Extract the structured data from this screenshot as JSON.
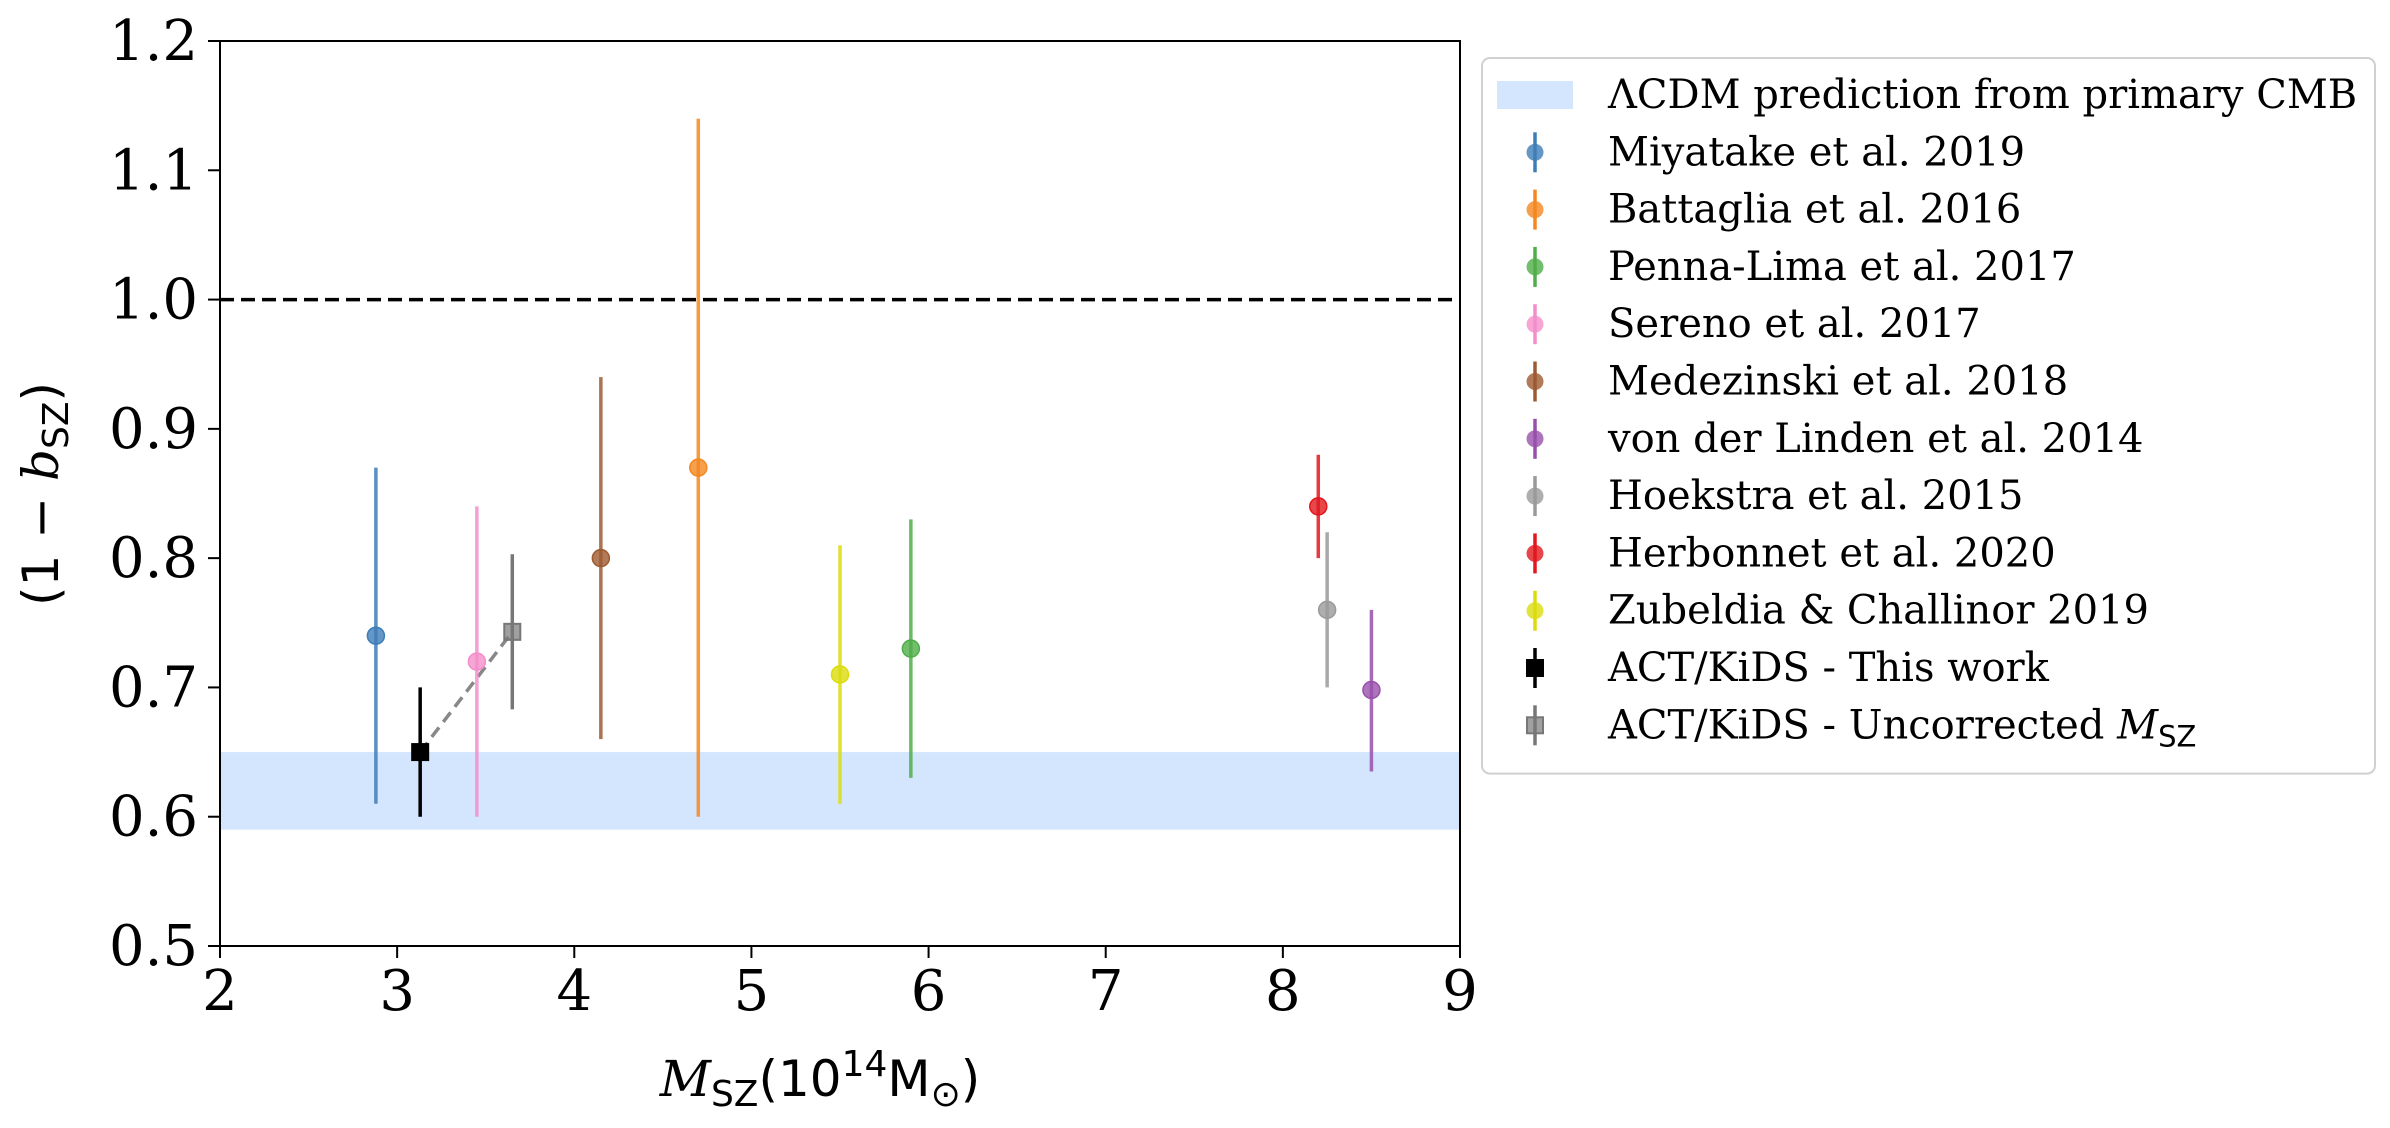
{
  "chart_data": {
    "type": "scatter",
    "xlabel": "M_SZ(10^14 M_sun)",
    "xlabel_parts": {
      "m": "M",
      "sub": "SZ",
      "open": "(10",
      "exp": "14",
      "msun": "M",
      "sun": "⊙",
      "close": ")"
    },
    "ylabel_parts": {
      "open": "(1 − ",
      "b": "b",
      "sub": "SZ",
      "close": ")"
    },
    "xlim": [
      2,
      9
    ],
    "ylim": [
      0.5,
      1.2
    ],
    "xticks": [
      "2",
      "3",
      "4",
      "5",
      "6",
      "7",
      "8",
      "9"
    ],
    "yticks": [
      "0.5",
      "0.6",
      "0.7",
      "0.8",
      "0.9",
      "1.0",
      "1.1",
      "1.2"
    ],
    "reference_line": {
      "y": 1.0,
      "style": "dashed",
      "color": "#000000"
    },
    "band": {
      "label": "ΛCDM prediction from primary CMB",
      "ymin": 0.59,
      "ymax": 0.65,
      "color": "#d3e6fd"
    },
    "connector": {
      "x": [
        3.13,
        3.65
      ],
      "y": [
        0.65,
        0.743
      ],
      "color": "#888888",
      "style": "dashed"
    },
    "series": [
      {
        "name": "Miyatake et al. 2019",
        "x": 2.88,
        "y": 0.74,
        "ylo": 0.61,
        "yhi": 0.87,
        "color": "#3e7db8",
        "marker": "circle"
      },
      {
        "name": "Battaglia et al. 2016",
        "x": 4.7,
        "y": 0.87,
        "ylo": 0.6,
        "yhi": 1.14,
        "color": "#f5871f",
        "marker": "circle"
      },
      {
        "name": "Penna-Lima et al. 2017",
        "x": 5.9,
        "y": 0.73,
        "ylo": 0.63,
        "yhi": 0.83,
        "color": "#4fae49",
        "marker": "circle"
      },
      {
        "name": "Sereno et al. 2017",
        "x": 3.45,
        "y": 0.72,
        "ylo": 0.6,
        "yhi": 0.84,
        "color": "#f48ecb",
        "marker": "circle"
      },
      {
        "name": "Medezinski et al. 2018",
        "x": 4.15,
        "y": 0.8,
        "ylo": 0.66,
        "yhi": 0.94,
        "color": "#9d5a31",
        "marker": "circle"
      },
      {
        "name": "von der Linden et al. 2014",
        "x": 8.5,
        "y": 0.698,
        "ylo": 0.635,
        "yhi": 0.76,
        "color": "#9850ab",
        "marker": "circle"
      },
      {
        "name": "Hoekstra et al. 2015",
        "x": 8.25,
        "y": 0.76,
        "ylo": 0.7,
        "yhi": 0.82,
        "color": "#9a9a9a",
        "marker": "circle"
      },
      {
        "name": "Herbonnet et al. 2020",
        "x": 8.2,
        "y": 0.84,
        "ylo": 0.8,
        "yhi": 0.88,
        "color": "#e1191e",
        "marker": "circle"
      },
      {
        "name": "Zubeldia & Challinor 2019",
        "x": 5.5,
        "y": 0.71,
        "ylo": 0.61,
        "yhi": 0.81,
        "color": "#dcdc0d",
        "marker": "circle"
      },
      {
        "name": "ACT/KiDS - This work",
        "x": 3.13,
        "y": 0.65,
        "ylo": 0.6,
        "yhi": 0.7,
        "color": "#000000",
        "marker": "square"
      },
      {
        "name": "ACT/KiDS - Uncorrected M_SZ",
        "label_main": "ACT/KiDS - Uncorrected ",
        "label_m": "M",
        "label_sub": "SZ",
        "x": 3.65,
        "y": 0.743,
        "ylo": 0.683,
        "yhi": 0.803,
        "color": "#777777",
        "marker": "square"
      }
    ],
    "legend_position": "outside-right-top"
  }
}
